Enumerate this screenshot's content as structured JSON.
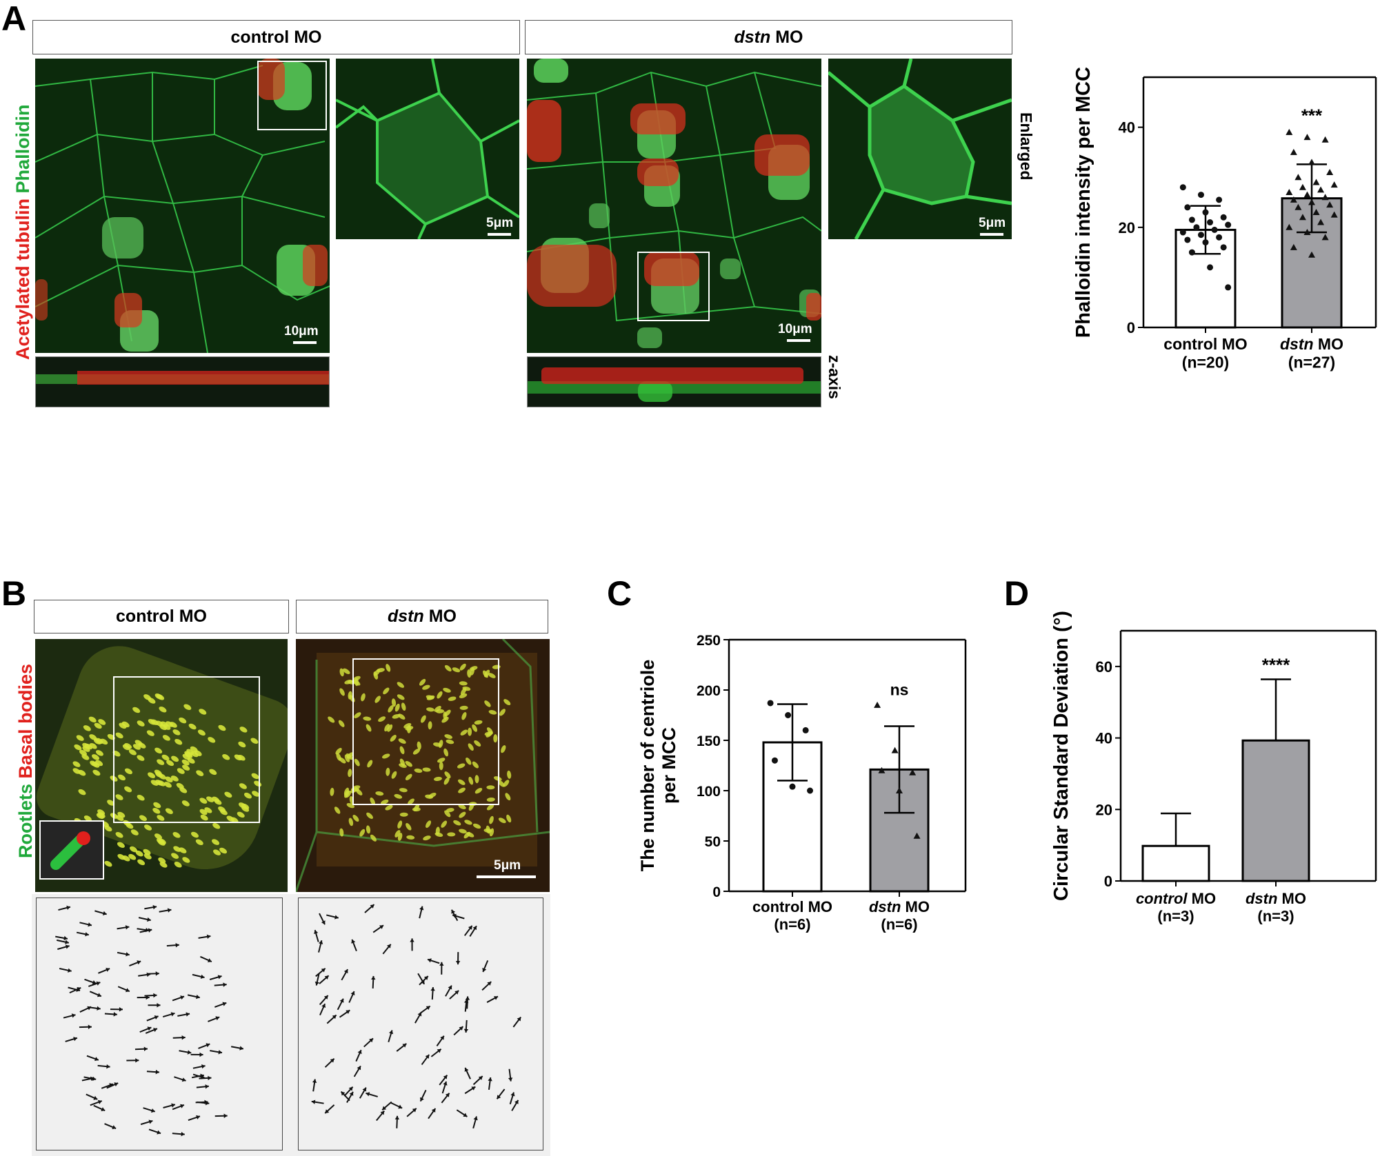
{
  "panels": {
    "a": "A",
    "b": "B",
    "c": "C",
    "d": "D"
  },
  "panel_a": {
    "header_control": "control MO",
    "header_dstn_italic": "dstn",
    "header_dstn_rest": " MO",
    "channel_green": "Phalloidin",
    "channel_red": "Acetylated tubulin",
    "label_enlarged": "Enlarged",
    "label_zaxis": "z-axis",
    "scale_main": "10μm",
    "scale_enlarged": "5μm"
  },
  "panel_b": {
    "header_control": "control MO",
    "header_dstn_italic": "dstn",
    "header_dstn_rest": " MO",
    "channel_green": "Rootlets",
    "channel_red": "Basal bodies",
    "scale": "5μm"
  },
  "colors": {
    "green": "#1fa83a",
    "red": "#e0201c",
    "bar_gray": "#a0a0a4",
    "micro_bg": "#0c2a0c"
  },
  "chart_data": [
    {
      "panel": "A",
      "type": "bar",
      "ylabel": "Phalloidin intensity per MCC",
      "ylim": [
        0,
        50
      ],
      "yticks": [
        0,
        20,
        40
      ],
      "categories": [
        {
          "italic": "",
          "rest": "control MO",
          "n": "(n=20)"
        },
        {
          "italic": "dstn",
          "rest": " MO",
          "n": "(n=27)"
        }
      ],
      "values": [
        19.5,
        25.8
      ],
      "sd": [
        4.8,
        6.8
      ],
      "significance": [
        "",
        "***"
      ],
      "points": [
        [
          28,
          26.5,
          25.5,
          24,
          23,
          22,
          21.5,
          21,
          20.5,
          20,
          19.5,
          19,
          18.5,
          18,
          17.5,
          17,
          16,
          15,
          12,
          8
        ],
        [
          39,
          38,
          37.5,
          35,
          33,
          31,
          30,
          29,
          28.5,
          28,
          27.5,
          27,
          26.5,
          26,
          25.5,
          25,
          24.5,
          24,
          23,
          22.5,
          22,
          21,
          20,
          19,
          18,
          16,
          14.5
        ]
      ]
    },
    {
      "panel": "C",
      "type": "bar",
      "ylabel": "The number of centriole per MCC",
      "ylim": [
        0,
        250
      ],
      "yticks": [
        0,
        50,
        100,
        150,
        200,
        250
      ],
      "categories": [
        {
          "italic": "",
          "rest": "control MO",
          "n": "(n=6)"
        },
        {
          "italic": "dstn",
          "rest": " MO",
          "n": "(n=6)"
        }
      ],
      "values": [
        148,
        121
      ],
      "sd": [
        38,
        43
      ],
      "significance": [
        "",
        "ns"
      ],
      "points": [
        [
          187,
          175,
          160,
          130,
          104,
          100
        ],
        [
          185,
          140,
          118,
          120,
          100,
          55
        ]
      ]
    },
    {
      "panel": "D",
      "type": "bar",
      "ylabel": "Circular Standard Deviation (°)",
      "ylim": [
        0,
        70
      ],
      "yticks": [
        0,
        20,
        40,
        60
      ],
      "categories": [
        {
          "italic": "control",
          "rest": " MO",
          "n": "(n=3)"
        },
        {
          "italic": "dstn",
          "rest": " MO",
          "n": "(n=3)"
        }
      ],
      "values": [
        9.8,
        39.3
      ],
      "sd": [
        9.1,
        17.1
      ],
      "significance": [
        "",
        "****"
      ],
      "points": []
    }
  ]
}
